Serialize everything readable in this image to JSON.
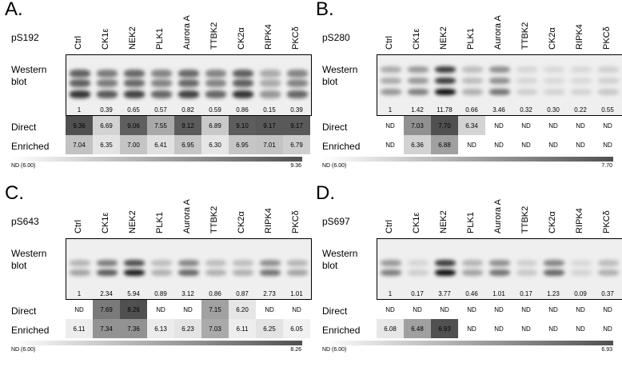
{
  "panels": [
    {
      "letter": "A.",
      "site": "pS192",
      "lanes": [
        "Ctrl",
        "CK1ε",
        "NEK2",
        "PLK1",
        "Aurora A",
        "TTBK2",
        "CK2α",
        "RIPK4",
        "PKCδ"
      ],
      "western_label": "Western blot",
      "quant": [
        "1",
        "0.39",
        "0.65",
        "0.57",
        "0.82",
        "0.59",
        "0.86",
        "0.15",
        "0.39"
      ],
      "direct_label": "Direct",
      "direct": [
        "9.36",
        "6.69",
        "9.06",
        "7.55",
        "9.12",
        "6.89",
        "9.10",
        "9.17",
        "9.17"
      ],
      "enriched_label": "Enriched",
      "enriched": [
        "7.04",
        "6.35",
        "7.00",
        "6.41",
        "6.95",
        "6.30",
        "6.95",
        "7.01",
        "6.79"
      ],
      "scale_min": "ND (6.00)",
      "scale_max": "9.36",
      "band_intensity": [
        0.75,
        0.6,
        0.7,
        0.55,
        0.7,
        0.55,
        0.75,
        0.35,
        0.55
      ]
    },
    {
      "letter": "B.",
      "site": "pS280",
      "lanes": [
        "Ctrl",
        "CK1ε",
        "NEK2",
        "PLK1",
        "Aurora A",
        "TTBK2",
        "CK2α",
        "RIPK4",
        "PKCδ"
      ],
      "western_label": "Western blot",
      "quant": [
        "1",
        "1.42",
        "11.78",
        "0.66",
        "3.46",
        "0.32",
        "0.30",
        "0.22",
        "0.55"
      ],
      "direct_label": "Direct",
      "direct": [
        "ND",
        "7.03",
        "7.70",
        "6.34",
        "ND",
        "ND",
        "ND",
        "ND",
        "ND"
      ],
      "enriched_label": "Enriched",
      "enriched": [
        "ND",
        "6.36",
        "6.88",
        "ND",
        "ND",
        "ND",
        "ND",
        "ND",
        "ND"
      ],
      "scale_min": "ND (6.00)",
      "scale_max": "7.70",
      "band_intensity": [
        0.35,
        0.45,
        0.95,
        0.25,
        0.5,
        0.12,
        0.1,
        0.1,
        0.15
      ]
    },
    {
      "letter": "C.",
      "site": "pS643",
      "lanes": [
        "Ctrl",
        "CK1ε",
        "NEK2",
        "PLK1",
        "Aurora A",
        "TTBK2",
        "CK2α",
        "RIPK4",
        "PKCδ"
      ],
      "western_label": "Western blot",
      "quant": [
        "1",
        "2.34",
        "5.94",
        "0.89",
        "3.12",
        "0.86",
        "0.87",
        "2.73",
        "1.01"
      ],
      "direct_label": "Direct",
      "direct": [
        "ND",
        "7.69",
        "8.26",
        "ND",
        "ND",
        "7.15",
        "6.20",
        "ND",
        "ND"
      ],
      "enriched_label": "Enriched",
      "enriched": [
        "6.11",
        "7.34",
        "7.36",
        "6.13",
        "6.23",
        "7.03",
        "6.11",
        "6.25",
        "6.05"
      ],
      "scale_min": "ND (6.00)",
      "scale_max": "8.26",
      "band_intensity": [
        0.3,
        0.6,
        0.85,
        0.25,
        0.55,
        0.25,
        0.25,
        0.5,
        0.3
      ]
    },
    {
      "letter": "D.",
      "site": "pS697",
      "lanes": [
        "Ctrl",
        "CK1ε",
        "NEK2",
        "PLK1",
        "Aurora A",
        "TTBK2",
        "CK2α",
        "RIPK4",
        "PKCδ"
      ],
      "western_label": "Western blot",
      "quant": [
        "1",
        "0.17",
        "3.77",
        "0.46",
        "1.01",
        "0.17",
        "1.23",
        "0.09",
        "0.37"
      ],
      "direct_label": "Direct",
      "direct": [
        "ND",
        "ND",
        "ND",
        "ND",
        "ND",
        "ND",
        "ND",
        "ND",
        "ND"
      ],
      "enriched_label": "Enriched",
      "enriched": [
        "6.08",
        "6.48",
        "6.93",
        "ND",
        "ND",
        "ND",
        "ND",
        "ND",
        "ND"
      ],
      "scale_min": "ND (6.00)",
      "scale_max": "6.93",
      "band_intensity": [
        0.45,
        0.12,
        0.95,
        0.3,
        0.5,
        0.15,
        0.55,
        0.1,
        0.25
      ]
    }
  ]
}
